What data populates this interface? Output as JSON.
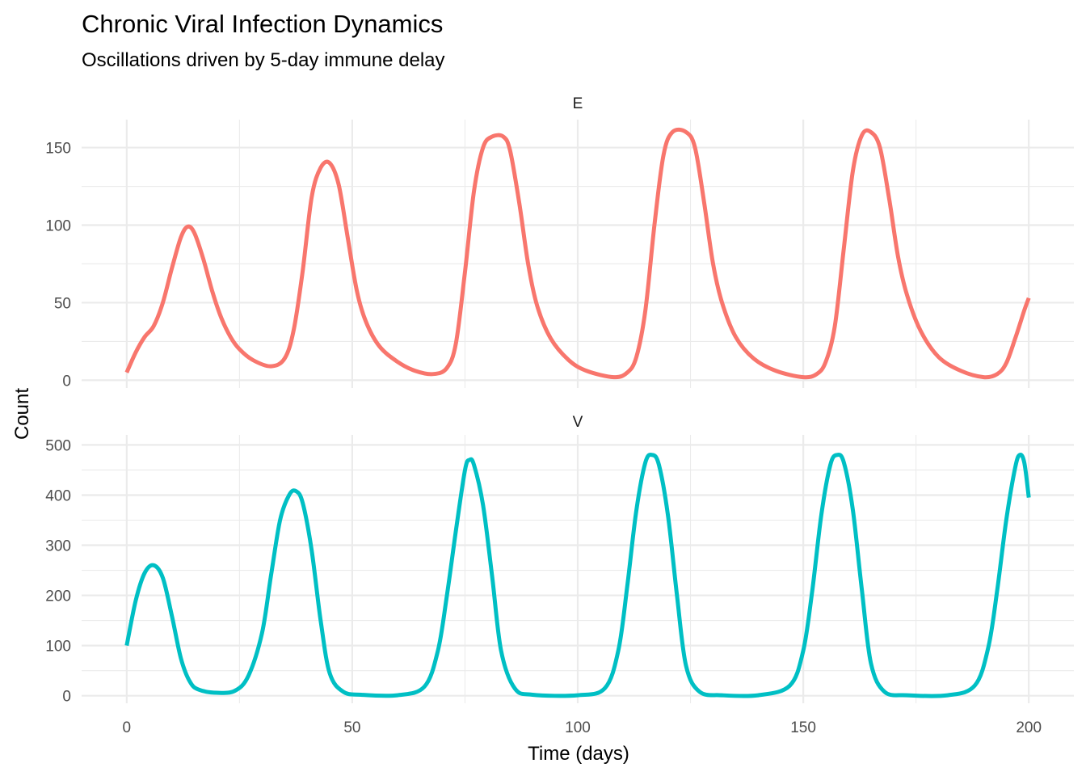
{
  "chart_data": {
    "type": "line",
    "title": "Chronic Viral Infection Dynamics",
    "subtitle": "Oscillations driven by 5-day immune delay",
    "xlabel": "Time (days)",
    "ylabel": "Count",
    "grid": true,
    "legend": "none",
    "x_ticks": [
      "0",
      "50",
      "100",
      "150",
      "200"
    ],
    "xlim": [
      -10,
      210
    ],
    "facets": [
      {
        "name": "E",
        "color": "#F8766D",
        "ylim": [
          -5,
          168
        ],
        "y_ticks": [
          "0",
          "50",
          "100",
          "150"
        ],
        "x": [
          0,
          2,
          4,
          6,
          8,
          10,
          12,
          13.5,
          15,
          17,
          19,
          21,
          23,
          25,
          28,
          32,
          35,
          37,
          39,
          41,
          43,
          45,
          47,
          49,
          51,
          53,
          56,
          60,
          64,
          68,
          71,
          73,
          75,
          77,
          79,
          81,
          83.5,
          85,
          87,
          89,
          91,
          94,
          98,
          102,
          108,
          111,
          113,
          115,
          117,
          119,
          121,
          124,
          126,
          128,
          130,
          132,
          135,
          139,
          144,
          150,
          153,
          155,
          157,
          159,
          161,
          163,
          165,
          167,
          169,
          171,
          173,
          176,
          180,
          185,
          190,
          193,
          195,
          197,
          199,
          200
        ],
        "y": [
          5,
          18,
          28,
          35,
          50,
          72,
          92,
          99,
          95,
          78,
          57,
          40,
          28,
          20,
          13,
          9,
          14,
          32,
          70,
          118,
          137,
          140,
          126,
          92,
          58,
          38,
          22,
          12,
          6,
          4,
          8,
          24,
          70,
          122,
          150,
          157,
          157,
          148,
          115,
          75,
          48,
          27,
          13,
          6,
          2,
          5,
          15,
          45,
          100,
          145,
          160,
          160,
          150,
          115,
          75,
          50,
          28,
          14,
          6,
          2,
          4,
          12,
          35,
          85,
          135,
          158,
          160,
          150,
          118,
          80,
          55,
          32,
          15,
          6,
          2,
          4,
          11,
          27,
          45,
          53
        ]
      },
      {
        "name": "V",
        "color": "#00BFC4",
        "ylim": [
          -15,
          520
        ],
        "y_ticks": [
          "0",
          "100",
          "200",
          "300",
          "400",
          "500"
        ],
        "x": [
          0,
          2,
          4,
          6,
          8,
          10,
          12,
          14,
          16,
          20,
          24,
          27,
          30,
          32,
          34,
          36,
          37.5,
          39,
          41,
          43,
          45,
          48,
          52,
          60,
          66,
          69,
          71,
          73,
          75,
          76,
          77,
          79,
          81,
          83,
          86,
          90,
          100,
          106,
          109,
          111,
          113,
          115,
          116.5,
          118,
          120,
          122,
          124,
          127,
          132,
          140,
          147,
          150,
          152,
          154,
          156,
          157.5,
          159,
          161,
          163,
          165,
          168,
          173,
          182,
          188,
          191,
          193,
          195,
          197,
          198,
          199,
          200
        ],
        "y": [
          100,
          190,
          245,
          260,
          235,
          160,
          75,
          28,
          12,
          6,
          10,
          40,
          125,
          240,
          350,
          400,
          408,
          385,
          290,
          150,
          45,
          8,
          2,
          1,
          18,
          90,
          200,
          330,
          450,
          470,
          460,
          380,
          240,
          90,
          15,
          2,
          1,
          15,
          90,
          220,
          370,
          465,
          480,
          460,
          360,
          200,
          60,
          8,
          1,
          1,
          20,
          90,
          210,
          360,
          460,
          480,
          465,
          370,
          210,
          65,
          8,
          1,
          1,
          20,
          95,
          210,
          350,
          455,
          480,
          465,
          395
        ]
      }
    ]
  }
}
